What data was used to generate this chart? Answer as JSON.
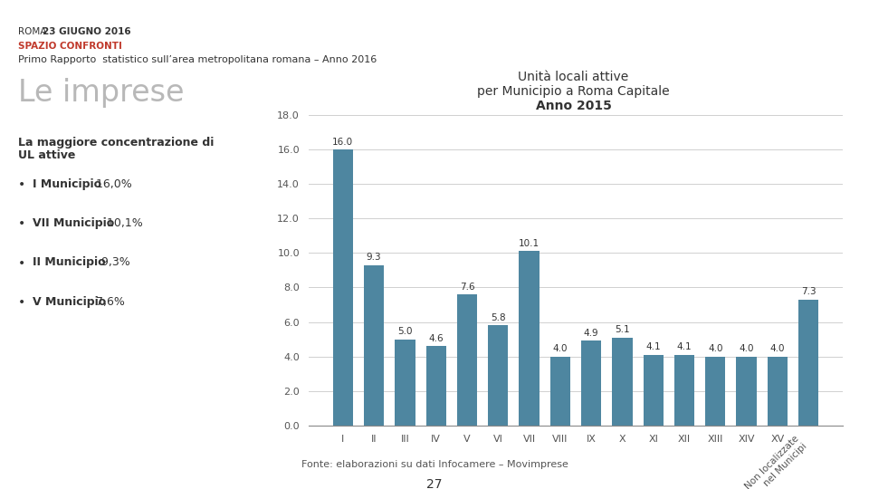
{
  "header_line3": "Primo Rapporto  statistico sull’area metropolitana romana – Anno 2016",
  "section_title": "Le imprese",
  "left_subtitle": "La maggiore concentrazione di\nUL attive",
  "bullet_bold": [
    "I Municipio",
    "VII Municipio",
    "II Municipio",
    "V Municipio"
  ],
  "bullet_normal": [
    " 16,0%",
    " 10,1%",
    " 9,3%",
    " 7,6%"
  ],
  "chart_title_line1": "Unità locali attive",
  "chart_title_line2": "per Municipio a Roma Capitale",
  "chart_title_line3": "Anno 2015",
  "categories": [
    "I",
    "II",
    "III",
    "IV",
    "V",
    "VI",
    "VII",
    "VIII",
    "IX",
    "X",
    "XI",
    "XII",
    "XIII",
    "XIV",
    "XV",
    "Non localizzate\nnel Municipi"
  ],
  "values": [
    16.0,
    9.3,
    5.0,
    4.6,
    7.6,
    5.8,
    10.1,
    4.0,
    4.9,
    5.1,
    4.1,
    4.1,
    4.0,
    4.0,
    4.0,
    7.3
  ],
  "bar_color": "#4e86a0",
  "ylim": [
    0,
    18.0
  ],
  "yticks": [
    0.0,
    2.0,
    4.0,
    6.0,
    8.0,
    10.0,
    12.0,
    14.0,
    16.0,
    18.0
  ],
  "footer_text": "Fonte: elaborazioni su dati Infocamere – Movimprese",
  "page_number": "27",
  "header_line_color": "#c0392b",
  "section_title_color": "#b8b8b8"
}
